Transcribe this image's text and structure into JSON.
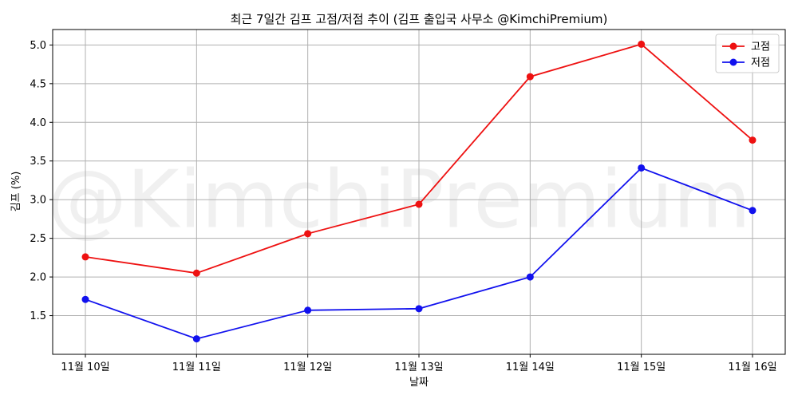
{
  "chart_data": {
    "type": "line",
    "title": "최근 7일간 김프 고점/저점 추이 (김프 출입국 사무소 @KimchiPremium)",
    "xlabel": "날짜",
    "ylabel": "김프 (%)",
    "watermark": "@KimchiPremium",
    "categories": [
      "11월 10일",
      "11월 11일",
      "11월 12일",
      "11월 13일",
      "11월 14일",
      "11월 15일",
      "11월 16일"
    ],
    "ylim": [
      1.0,
      5.2
    ],
    "yticks": [
      "1.5",
      "2.0",
      "2.5",
      "3.0",
      "3.5",
      "4.0",
      "4.5",
      "5.0"
    ],
    "grid": true,
    "legend_position": "top-right",
    "series": [
      {
        "name": "고점",
        "color": "#ee1111",
        "values": [
          2.26,
          2.05,
          2.56,
          2.94,
          4.59,
          5.01,
          3.77
        ]
      },
      {
        "name": "저점",
        "color": "#1111ee",
        "values": [
          1.71,
          1.2,
          1.57,
          1.59,
          2.0,
          3.41,
          2.86
        ]
      }
    ]
  }
}
